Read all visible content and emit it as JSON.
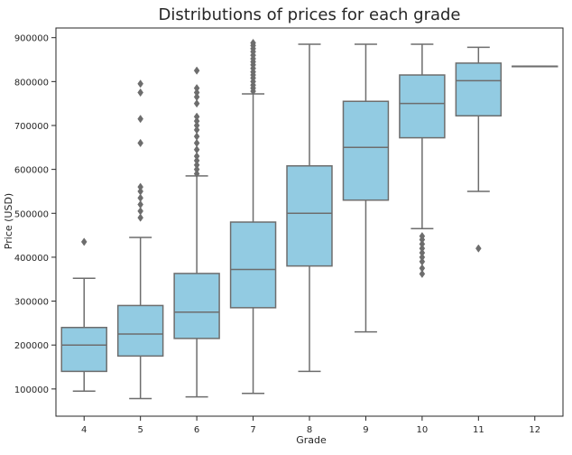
{
  "chart_data": {
    "type": "box",
    "title": "Distributions of prices for each grade",
    "xlabel": "Grade",
    "ylabel": "Price (USD)",
    "categories": [
      "4",
      "5",
      "6",
      "7",
      "8",
      "9",
      "10",
      "11",
      "12"
    ],
    "ylim": [
      38000,
      922000
    ],
    "yticks": [
      100000,
      200000,
      300000,
      400000,
      500000,
      600000,
      700000,
      800000,
      900000
    ],
    "ytick_labels": [
      "100000",
      "200000",
      "300000",
      "400000",
      "500000",
      "600000",
      "700000",
      "800000",
      "900000"
    ],
    "grid": false,
    "colors": {
      "box_fill": "#92cbe2",
      "line": "#6d6d6d",
      "axis": "#262626"
    },
    "boxes": [
      {
        "category": "4",
        "whisker_low": 95000,
        "q1": 140000,
        "median": 200000,
        "q3": 240000,
        "whisker_high": 352000,
        "outliers": [
          435000
        ]
      },
      {
        "category": "5",
        "whisker_low": 78000,
        "q1": 175000,
        "median": 225000,
        "q3": 290000,
        "whisker_high": 445000,
        "outliers": [
          490000,
          505000,
          520000,
          535000,
          550000,
          560000,
          660000,
          715000,
          775000,
          795000
        ]
      },
      {
        "category": "6",
        "whisker_low": 82000,
        "q1": 215000,
        "median": 275000,
        "q3": 363000,
        "whisker_high": 585000,
        "outliers": [
          590000,
          600000,
          610000,
          620000,
          630000,
          645000,
          660000,
          675000,
          690000,
          700000,
          710000,
          720000,
          750000,
          765000,
          775000,
          785000,
          825000
        ]
      },
      {
        "category": "7",
        "whisker_low": 90000,
        "q1": 285000,
        "median": 372000,
        "q3": 480000,
        "whisker_high": 772000,
        "outliers": [
          778000,
          785000,
          792000,
          800000,
          808000,
          815000,
          822000,
          830000,
          838000,
          845000,
          852000,
          860000,
          868000,
          875000,
          882000,
          888000
        ]
      },
      {
        "category": "8",
        "whisker_low": 140000,
        "q1": 380000,
        "median": 500000,
        "q3": 608000,
        "whisker_high": 885000,
        "outliers": []
      },
      {
        "category": "9",
        "whisker_low": 230000,
        "q1": 530000,
        "median": 650000,
        "q3": 755000,
        "whisker_high": 885000,
        "outliers": []
      },
      {
        "category": "10",
        "whisker_low": 465000,
        "q1": 672000,
        "median": 750000,
        "q3": 815000,
        "whisker_high": 885000,
        "outliers": [
          362000,
          375000,
          390000,
          400000,
          410000,
          420000,
          430000,
          440000,
          448000
        ]
      },
      {
        "category": "11",
        "whisker_low": 550000,
        "q1": 722000,
        "median": 802000,
        "q3": 842000,
        "whisker_high": 878000,
        "outliers": [
          420000
        ]
      },
      {
        "category": "12",
        "whisker_low": 835000,
        "q1": 835000,
        "median": 835000,
        "q3": 835000,
        "whisker_high": 835000,
        "outliers": []
      }
    ]
  }
}
